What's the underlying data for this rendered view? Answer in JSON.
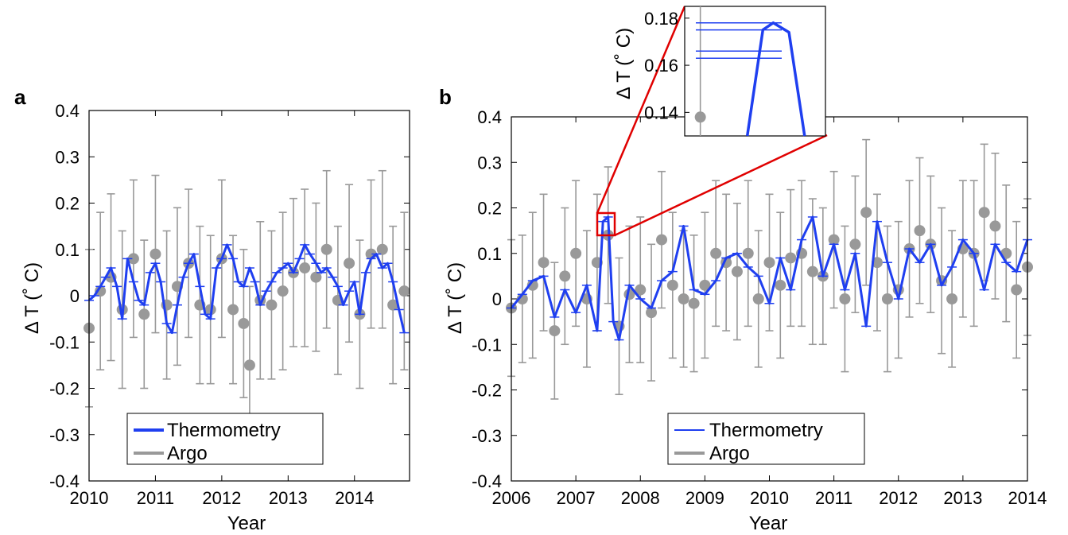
{
  "chart_data": [
    {
      "panel_label": "a",
      "type": "line",
      "xlabel": "Year",
      "ylabel": "Δ T (˚ C)",
      "xlim": [
        2010,
        2014.83
      ],
      "ylim": [
        -0.4,
        0.4
      ],
      "xticks": [
        2010,
        2011,
        2012,
        2013,
        2014
      ],
      "yticks": [
        -0.4,
        -0.3,
        -0.2,
        -0.1,
        0,
        0.1,
        0.2,
        0.3,
        0.4
      ],
      "grid": false,
      "legend_position": "bottom-center",
      "series": [
        {
          "name": "Thermometry",
          "color": "#1f3ff0",
          "x": [
            2010.0,
            2010.08,
            2010.17,
            2010.25,
            2010.33,
            2010.42,
            2010.5,
            2010.58,
            2010.67,
            2010.75,
            2010.83,
            2010.92,
            2011.0,
            2011.08,
            2011.17,
            2011.25,
            2011.33,
            2011.42,
            2011.5,
            2011.58,
            2011.67,
            2011.75,
            2011.83,
            2011.92,
            2012.0,
            2012.08,
            2012.17,
            2012.25,
            2012.33,
            2012.42,
            2012.5,
            2012.58,
            2012.67,
            2012.75,
            2012.83,
            2012.92,
            2013.0,
            2013.08,
            2013.17,
            2013.25,
            2013.33,
            2013.42,
            2013.5,
            2013.58,
            2013.67,
            2013.75,
            2013.83,
            2013.92,
            2014.0,
            2014.08,
            2014.17,
            2014.25,
            2014.33,
            2014.42,
            2014.5,
            2014.58,
            2014.67,
            2014.75
          ],
          "y": [
            -0.01,
            0.0,
            0.02,
            0.04,
            0.06,
            0.02,
            -0.05,
            0.08,
            0.03,
            -0.01,
            -0.02,
            0.05,
            0.07,
            0.03,
            -0.06,
            -0.08,
            -0.02,
            0.04,
            0.07,
            0.09,
            0.02,
            -0.04,
            -0.05,
            0.06,
            0.08,
            0.11,
            0.08,
            0.03,
            0.02,
            0.06,
            0.03,
            -0.02,
            0.01,
            0.03,
            0.05,
            0.06,
            0.07,
            0.05,
            0.08,
            0.11,
            0.09,
            0.07,
            0.05,
            0.06,
            0.04,
            0.02,
            -0.02,
            0.01,
            0.03,
            -0.04,
            0.05,
            0.08,
            0.09,
            0.06,
            0.07,
            0.03,
            -0.03,
            -0.08
          ]
        },
        {
          "name": "Argo",
          "color": "#999999",
          "x": [
            2010.0,
            2010.17,
            2010.33,
            2010.5,
            2010.67,
            2010.83,
            2011.0,
            2011.17,
            2011.33,
            2011.5,
            2011.67,
            2011.83,
            2012.0,
            2012.17,
            2012.33,
            2012.42,
            2012.58,
            2012.75,
            2012.92,
            2013.08,
            2013.25,
            2013.42,
            2013.58,
            2013.75,
            2013.92,
            2014.08,
            2014.25,
            2014.42,
            2014.58,
            2014.75
          ],
          "y": [
            -0.07,
            0.01,
            0.04,
            -0.03,
            0.08,
            -0.04,
            0.09,
            -0.02,
            0.02,
            0.07,
            -0.02,
            -0.03,
            0.08,
            -0.03,
            -0.06,
            -0.15,
            -0.01,
            -0.02,
            0.01,
            0.05,
            0.06,
            0.04,
            0.1,
            -0.01,
            0.07,
            -0.04,
            0.09,
            0.1,
            -0.02,
            0.01
          ],
          "error": [
            0.17,
            0.17,
            0.18,
            0.17,
            0.17,
            0.16,
            0.17,
            0.16,
            0.17,
            0.16,
            0.17,
            0.16,
            0.17,
            0.16,
            0.16,
            0.17,
            0.17,
            0.16,
            0.17,
            0.16,
            0.17,
            0.16,
            0.17,
            0.16,
            0.17,
            0.16,
            0.16,
            0.17,
            0.17,
            0.17
          ]
        }
      ]
    },
    {
      "panel_label": "b",
      "type": "line",
      "xlabel": "Year",
      "ylabel": "Δ T (˚ C)",
      "xlim": [
        2006,
        2014
      ],
      "ylim": [
        -0.4,
        0.4
      ],
      "xticks": [
        2006,
        2007,
        2008,
        2009,
        2010,
        2011,
        2012,
        2013,
        2014
      ],
      "yticks": [
        -0.4,
        -0.3,
        -0.2,
        -0.1,
        0,
        0.1,
        0.2,
        0.3,
        0.4
      ],
      "grid": false,
      "legend_position": "bottom-center",
      "series": [
        {
          "name": "Thermometry",
          "color": "#1f3ff0",
          "x": [
            2006.0,
            2006.17,
            2006.33,
            2006.5,
            2006.67,
            2006.83,
            2007.0,
            2007.17,
            2007.33,
            2007.42,
            2007.5,
            2007.58,
            2007.67,
            2007.83,
            2008.0,
            2008.17,
            2008.33,
            2008.5,
            2008.67,
            2008.83,
            2009.0,
            2009.17,
            2009.33,
            2009.5,
            2009.67,
            2009.83,
            2010.0,
            2010.17,
            2010.33,
            2010.5,
            2010.67,
            2010.83,
            2011.0,
            2011.17,
            2011.33,
            2011.5,
            2011.67,
            2011.83,
            2012.0,
            2012.17,
            2012.33,
            2012.5,
            2012.67,
            2012.83,
            2013.0,
            2013.17,
            2013.33,
            2013.5,
            2013.67,
            2013.83,
            2014.0
          ],
          "y": [
            -0.02,
            0.01,
            0.04,
            0.05,
            -0.04,
            0.02,
            -0.03,
            0.03,
            -0.07,
            0.17,
            0.18,
            -0.05,
            -0.09,
            0.03,
            0.0,
            -0.02,
            0.04,
            0.06,
            0.16,
            0.02,
            0.01,
            0.04,
            0.09,
            0.1,
            0.07,
            0.05,
            -0.01,
            0.09,
            0.02,
            0.13,
            0.18,
            0.05,
            0.12,
            0.02,
            0.1,
            -0.06,
            0.17,
            0.08,
            0.0,
            0.11,
            0.08,
            0.12,
            0.03,
            0.07,
            0.13,
            0.1,
            0.02,
            0.12,
            0.08,
            0.06,
            0.13
          ]
        },
        {
          "name": "Argo",
          "color": "#999999",
          "x": [
            2006.0,
            2006.17,
            2006.33,
            2006.5,
            2006.67,
            2006.83,
            2007.0,
            2007.17,
            2007.33,
            2007.5,
            2007.67,
            2007.83,
            2008.0,
            2008.17,
            2008.33,
            2008.5,
            2008.67,
            2008.83,
            2009.0,
            2009.17,
            2009.33,
            2009.5,
            2009.67,
            2009.83,
            2010.0,
            2010.17,
            2010.33,
            2010.5,
            2010.67,
            2010.83,
            2011.0,
            2011.17,
            2011.33,
            2011.5,
            2011.67,
            2011.83,
            2012.0,
            2012.17,
            2012.33,
            2012.5,
            2012.67,
            2012.83,
            2013.0,
            2013.17,
            2013.33,
            2013.5,
            2013.67,
            2013.83,
            2014.0
          ],
          "y": [
            -0.02,
            0.0,
            0.03,
            0.08,
            -0.07,
            0.05,
            0.1,
            0.0,
            0.08,
            0.14,
            -0.06,
            0.01,
            0.02,
            -0.03,
            0.13,
            0.03,
            0.0,
            -0.01,
            0.03,
            0.1,
            0.08,
            0.06,
            0.1,
            0.0,
            0.08,
            0.03,
            0.09,
            0.1,
            0.06,
            0.05,
            0.13,
            0.0,
            0.12,
            0.19,
            0.08,
            0.0,
            0.02,
            0.11,
            0.15,
            0.12,
            0.04,
            0.0,
            0.11,
            0.1,
            0.19,
            0.16,
            0.1,
            0.02,
            0.07
          ],
          "error": [
            0.15,
            0.14,
            0.16,
            0.15,
            0.15,
            0.15,
            0.16,
            0.15,
            0.15,
            0.15,
            0.15,
            0.15,
            0.16,
            0.15,
            0.15,
            0.16,
            0.15,
            0.15,
            0.16,
            0.16,
            0.15,
            0.15,
            0.16,
            0.15,
            0.15,
            0.16,
            0.15,
            0.16,
            0.16,
            0.15,
            0.15,
            0.16,
            0.15,
            0.16,
            0.15,
            0.16,
            0.15,
            0.15,
            0.16,
            0.15,
            0.16,
            0.15,
            0.15,
            0.16,
            0.15,
            0.16,
            0.15,
            0.15,
            0.15
          ]
        }
      ],
      "inset": {
        "ylabel": "Δ T (˚ C)",
        "xlim": [
          2007.35,
          2007.62
        ],
        "ylim": [
          0.13,
          0.185
        ],
        "yticks": [
          0.14,
          0.16,
          0.18
        ],
        "ytick_labels": [
          "0.14",
          "0.16",
          "0.18"
        ],
        "argo_point": {
          "x": 2007.38,
          "y": 0.138
        },
        "thermometry": {
          "x": [
            2007.47,
            2007.5,
            2007.52,
            2007.55,
            2007.58
          ],
          "y": [
            0.12,
            0.175,
            0.178,
            0.174,
            0.12
          ]
        },
        "hbars_y": [
          0.178,
          0.175,
          0.166,
          0.163
        ]
      }
    }
  ]
}
